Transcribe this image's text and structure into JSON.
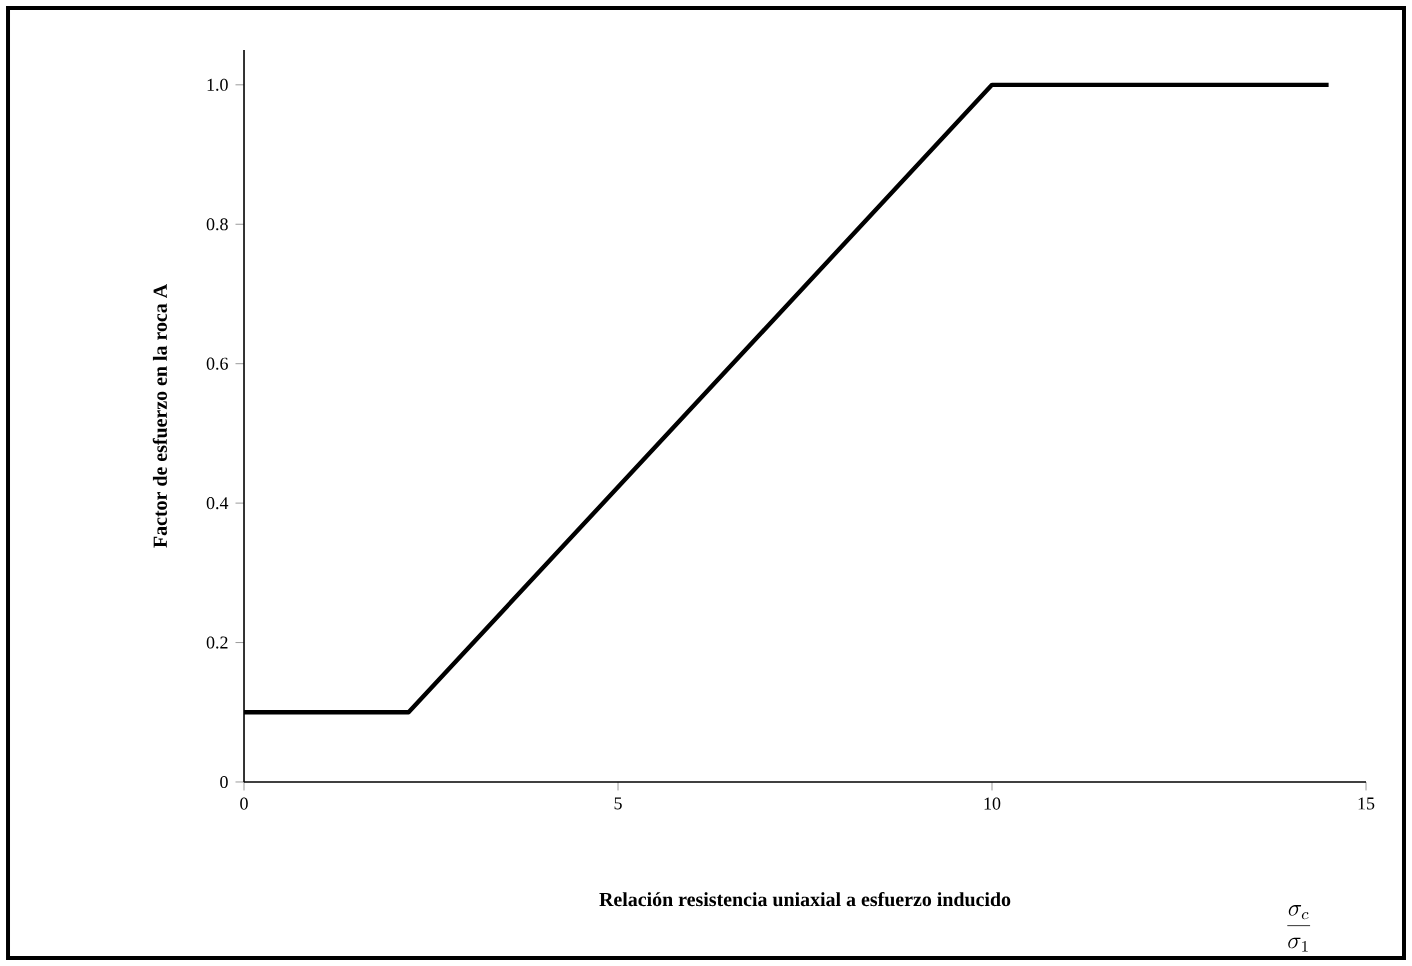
{
  "chart_data": {
    "type": "line",
    "xlabel": "Relación resistencia uniaxial a esfuerzo inducido",
    "ylabel": "Factor de esfuerzo en la roca A",
    "annotations": [
      "\\frac{\\sigma_c}{\\sigma_1}"
    ],
    "x": [
      0,
      2.2,
      10,
      14.5
    ],
    "series": [
      {
        "color": "#000000",
        "values": [
          0.1,
          0.1,
          1.0,
          1.0
        ]
      }
    ],
    "xlim": [
      0,
      15
    ],
    "ylim": [
      0,
      1.05
    ],
    "xticks": [
      0,
      5,
      10,
      15
    ],
    "yticks": [
      0,
      0.2,
      0.4,
      0.6,
      0.8,
      {
        "value": 1,
        "label": "1.0"
      }
    ]
  }
}
